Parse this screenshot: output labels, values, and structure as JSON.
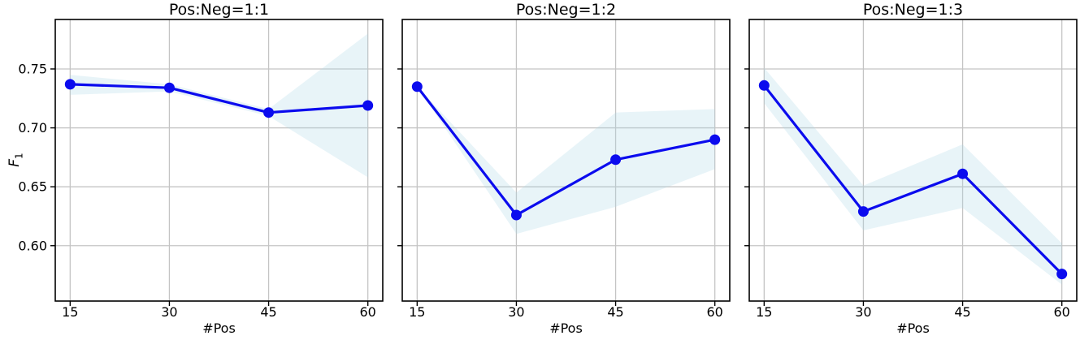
{
  "figure": {
    "background": "#ffffff",
    "line_color": "#0b0bee",
    "marker": "circle",
    "band_color": "#add8e6",
    "band_opacity": 0.28,
    "grid_color": "#c4c4c4",
    "spine_color": "#000000",
    "tick_color": "#000000",
    "text_color": "#000000"
  },
  "axes": {
    "xlabel": "#Pos",
    "ylabel": "F1",
    "ylabel_main": "F",
    "ylabel_sub": "1",
    "xticks": [
      15,
      30,
      45,
      60
    ],
    "xtick_labels": [
      "15",
      "30",
      "45",
      "60"
    ],
    "yticks": [
      0.6,
      0.65,
      0.7,
      0.75
    ],
    "ytick_labels": [
      "0.60",
      "0.65",
      "0.70",
      "0.75"
    ],
    "xlim": [
      12.75,
      62.25
    ],
    "ylim": [
      0.553,
      0.792
    ],
    "grid": true,
    "legend": "none"
  },
  "chart_data": [
    {
      "type": "line",
      "title": "Pos:Neg=1:1",
      "xlabel": "#Pos",
      "ylabel": "F1",
      "x": [
        15,
        30,
        45,
        60
      ],
      "y": [
        0.737,
        0.734,
        0.713,
        0.719
      ],
      "band_upper": [
        0.745,
        0.737,
        0.716,
        0.78
      ],
      "band_lower": [
        0.728,
        0.731,
        0.71,
        0.658
      ],
      "xlim": [
        12.75,
        62.25
      ],
      "ylim": [
        0.553,
        0.792
      ]
    },
    {
      "type": "line",
      "title": "Pos:Neg=1:2",
      "xlabel": "#Pos",
      "ylabel": "F1",
      "x": [
        15,
        30,
        45,
        60
      ],
      "y": [
        0.735,
        0.626,
        0.673,
        0.69
      ],
      "band_upper": [
        0.735,
        0.645,
        0.713,
        0.716
      ],
      "band_lower": [
        0.735,
        0.61,
        0.633,
        0.665
      ],
      "xlim": [
        12.75,
        62.25
      ],
      "ylim": [
        0.553,
        0.792
      ]
    },
    {
      "type": "line",
      "title": "Pos:Neg=1:3",
      "xlabel": "#Pos",
      "ylabel": "F1",
      "x": [
        15,
        30,
        45,
        60
      ],
      "y": [
        0.736,
        0.629,
        0.661,
        0.576
      ],
      "band_upper": [
        0.751,
        0.651,
        0.686,
        0.602
      ],
      "band_lower": [
        0.721,
        0.613,
        0.632,
        0.567
      ],
      "xlim": [
        12.75,
        62.25
      ],
      "ylim": [
        0.553,
        0.792
      ]
    }
  ]
}
